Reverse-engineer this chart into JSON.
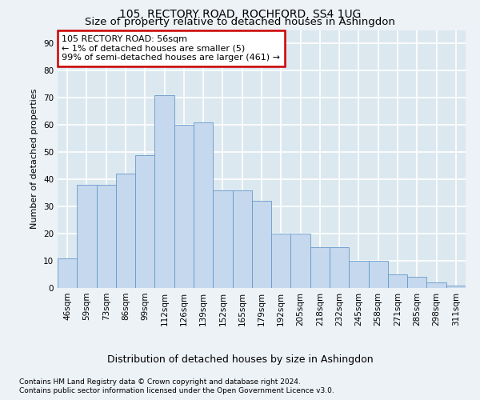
{
  "title1": "105, RECTORY ROAD, ROCHFORD, SS4 1UG",
  "title2": "Size of property relative to detached houses in Ashingdon",
  "xlabel": "Distribution of detached houses by size in Ashingdon",
  "ylabel": "Number of detached properties",
  "categories": [
    "46sqm",
    "59sqm",
    "73sqm",
    "86sqm",
    "99sqm",
    "112sqm",
    "126sqm",
    "139sqm",
    "152sqm",
    "165sqm",
    "179sqm",
    "192sqm",
    "205sqm",
    "218sqm",
    "232sqm",
    "245sqm",
    "258sqm",
    "271sqm",
    "285sqm",
    "298sqm",
    "311sqm"
  ],
  "values": [
    11,
    38,
    38,
    42,
    49,
    71,
    60,
    61,
    36,
    36,
    32,
    20,
    20,
    15,
    15,
    10,
    10,
    5,
    4,
    2,
    1
  ],
  "bar_color": "#c5d8ed",
  "bar_edge_color": "#6699cc",
  "annotation_title": "105 RECTORY ROAD: 56sqm",
  "annotation_line1": "← 1% of detached houses are smaller (5)",
  "annotation_line2": "99% of semi-detached houses are larger (461) →",
  "annotation_box_color": "#ffffff",
  "annotation_box_edge": "#cc0000",
  "ylim": [
    0,
    95
  ],
  "yticks": [
    0,
    10,
    20,
    30,
    40,
    50,
    60,
    70,
    80,
    90
  ],
  "footer1": "Contains HM Land Registry data © Crown copyright and database right 2024.",
  "footer2": "Contains public sector information licensed under the Open Government Licence v3.0.",
  "bg_color": "#edf2f7",
  "plot_bg_color": "#dce8f0",
  "grid_color": "#ffffff",
  "title1_fontsize": 10,
  "title2_fontsize": 9.5,
  "xlabel_fontsize": 9,
  "ylabel_fontsize": 8,
  "tick_fontsize": 7.5,
  "footer_fontsize": 6.5,
  "ann_fontsize": 8
}
